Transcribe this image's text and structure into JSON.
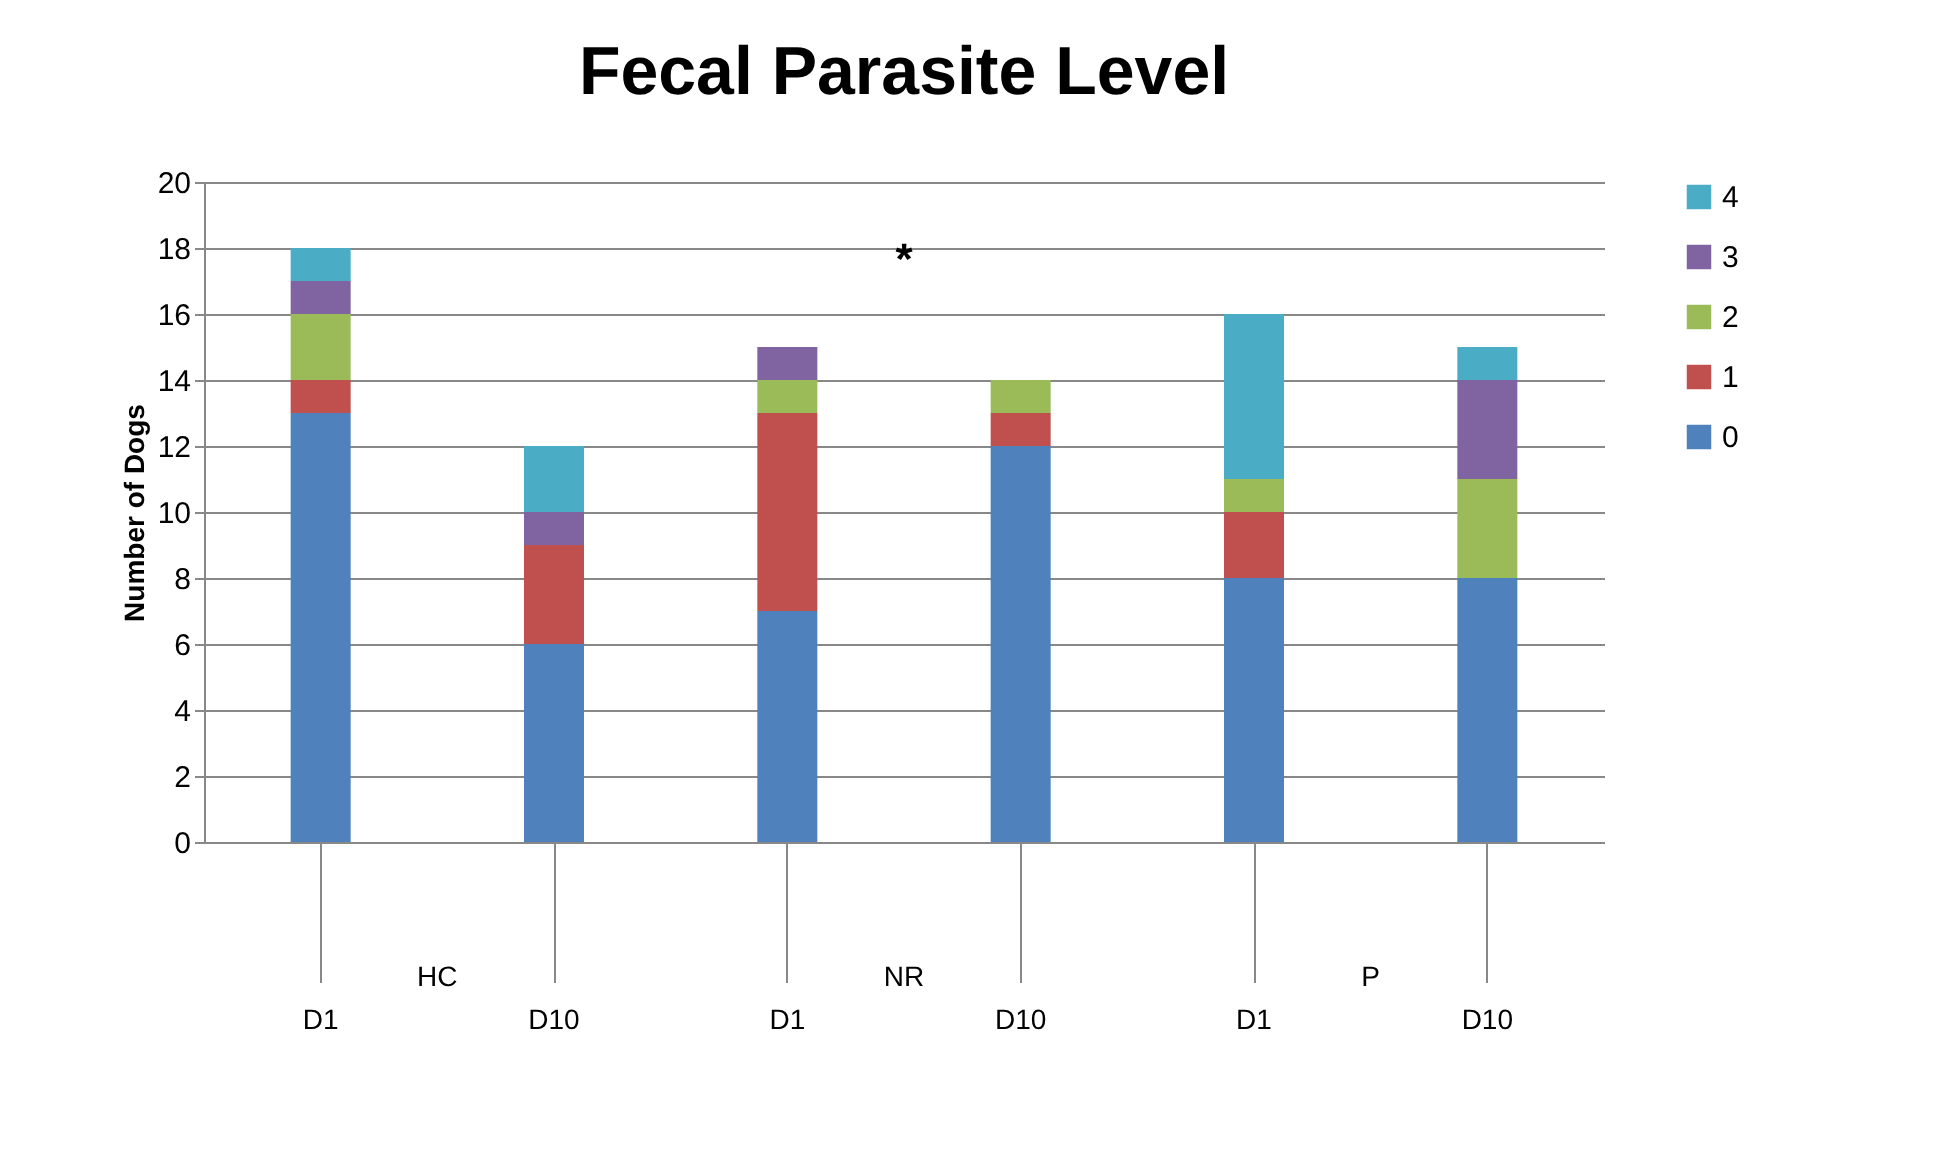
{
  "chart_data": {
    "type": "bar",
    "title": "Fecal Parasite Level",
    "ylabel": "Number of Dogs",
    "categories": [
      "D1",
      "D10",
      "D1",
      "D10",
      "D1",
      "D10"
    ],
    "stacked": true,
    "series": [
      {
        "name": "0",
        "color": "#4f81bd",
        "values": [
          13,
          6,
          7,
          12,
          8,
          8
        ]
      },
      {
        "name": "1",
        "color": "#c0504d",
        "values": [
          1,
          3,
          6,
          1,
          2,
          0
        ]
      },
      {
        "name": "2",
        "color": "#9bbb59",
        "values": [
          2,
          0,
          1,
          1,
          1,
          3
        ]
      },
      {
        "name": "3",
        "color": "#8064a2",
        "values": [
          1,
          1,
          1,
          0,
          0,
          3
        ]
      },
      {
        "name": "4",
        "color": "#4bacc6",
        "values": [
          1,
          2,
          0,
          0,
          5,
          1
        ]
      }
    ],
    "ylim": [
      0,
      20
    ],
    "yticks": [
      0,
      2,
      4,
      6,
      8,
      10,
      12,
      14,
      16,
      18,
      20
    ],
    "grid": "y",
    "legend": "right",
    "annotations": [
      "HC",
      "NR",
      "P",
      "*"
    ]
  }
}
